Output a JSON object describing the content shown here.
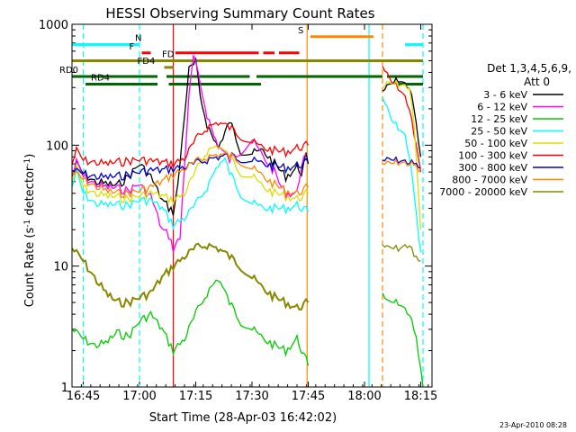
{
  "chart_data": {
    "type": "line",
    "title": "HESSI Observing Summary Count Rates",
    "xlabel": "Start Time (28-Apr-03 16:42:02)",
    "ylabel": "Count Rate (s⁻¹ detector⁻¹)",
    "ylabel_main": "Count Rate (s",
    "ylabel_mid": " detector",
    "ylabel_end": ")",
    "ylabel_sup": "-1",
    "footer": "23-Apr-2010 08:28",
    "legend_title_1": "Det 1,3,4,5,6,9,",
    "legend_title_2": "Att 0",
    "xlim_min": [
      16.7,
      18.3
    ],
    "ylim": [
      1,
      1000
    ],
    "y_scale": "log",
    "x_ticks": [
      {
        "label": "16:45",
        "value": 16.75
      },
      {
        "label": "17:00",
        "value": 17.0
      },
      {
        "label": "17:15",
        "value": 17.25
      },
      {
        "label": "17:30",
        "value": 17.5
      },
      {
        "label": "17:45",
        "value": 17.75
      },
      {
        "label": "18:00",
        "value": 18.0
      },
      {
        "label": "18:15",
        "value": 18.25
      }
    ],
    "y_ticks": [
      {
        "label": "1",
        "value": 1
      },
      {
        "label": "10",
        "value": 10
      },
      {
        "label": "100",
        "value": 100
      },
      {
        "label": "1000",
        "value": 1000
      }
    ],
    "series": [
      {
        "name": "3 - 6 keV",
        "color": "#000000",
        "x": [
          16.7,
          16.72,
          16.75,
          16.8,
          16.85,
          16.9,
          16.95,
          17.0,
          17.05,
          17.1,
          17.15,
          17.17,
          17.2,
          17.22,
          17.25,
          17.27,
          17.3,
          17.33,
          17.35,
          17.37,
          17.4,
          17.45,
          17.5,
          17.55,
          17.6,
          17.65,
          17.7,
          17.72,
          17.74,
          17.75
        ],
        "y": [
          55,
          70,
          58,
          50,
          48,
          46,
          55,
          70,
          55,
          35,
          28,
          45,
          180,
          420,
          480,
          250,
          150,
          110,
          100,
          110,
          160,
          90,
          85,
          90,
          70,
          55,
          65,
          60,
          80,
          70
        ]
      },
      {
        "name": "6 - 12 keV",
        "color": "#ff00ff",
        "x": [
          16.7,
          16.72,
          16.75,
          16.8,
          16.85,
          16.9,
          16.95,
          17.0,
          17.03,
          17.05,
          17.1,
          17.13,
          17.15,
          17.18,
          17.2,
          17.22,
          17.24,
          17.26,
          17.3,
          17.33,
          17.35,
          17.4,
          17.45,
          17.5,
          17.55,
          17.6,
          17.63,
          17.65,
          17.7,
          17.72,
          17.74
        ],
        "y": [
          55,
          72,
          55,
          48,
          45,
          44,
          42,
          48,
          40,
          38,
          20,
          18,
          14,
          17,
          70,
          250,
          550,
          380,
          180,
          120,
          100,
          75,
          90,
          110,
          80,
          60,
          45,
          40,
          40,
          70,
          85
        ]
      },
      {
        "name": "12 - 25 keV",
        "color": "#00cc00",
        "x": [
          16.7,
          16.75,
          16.8,
          16.85,
          16.9,
          16.95,
          17.0,
          17.05,
          17.1,
          17.15,
          17.2,
          17.25,
          17.3,
          17.35,
          17.4,
          17.45,
          17.5,
          17.55,
          17.6,
          17.65,
          17.7,
          17.75
        ],
        "y": [
          3,
          2.5,
          2.2,
          2.3,
          2.8,
          2.6,
          3.5,
          4,
          3,
          2,
          2.5,
          4,
          6,
          8,
          5,
          3.5,
          3,
          2.5,
          2.2,
          2,
          2.5,
          1.5
        ]
      },
      {
        "name": "25 - 50 keV",
        "color": "#00ffff",
        "x": [
          16.7,
          16.72,
          16.75,
          16.8,
          16.85,
          16.9,
          16.95,
          17.0,
          17.05,
          17.1,
          17.15,
          17.2,
          17.25,
          17.3,
          17.35,
          17.38,
          17.4,
          17.45,
          17.5,
          17.55,
          17.6,
          17.65,
          17.7,
          17.75
        ],
        "y": [
          45,
          60,
          40,
          33,
          32,
          32,
          32,
          35,
          35,
          30,
          22,
          25,
          32,
          45,
          70,
          75,
          60,
          40,
          33,
          30,
          30,
          30,
          32,
          28
        ]
      },
      {
        "name": "50 - 100 keV",
        "color": "#dddd00",
        "x": [
          16.7,
          16.72,
          16.75,
          16.8,
          16.85,
          16.9,
          16.95,
          17.0,
          17.05,
          17.1,
          17.15,
          17.2,
          17.25,
          17.3,
          17.35,
          17.4,
          17.45,
          17.5,
          17.55,
          17.6,
          17.65,
          17.7,
          17.75
        ],
        "y": [
          50,
          65,
          45,
          40,
          38,
          37,
          36,
          38,
          40,
          38,
          35,
          40,
          60,
          90,
          100,
          80,
          60,
          55,
          45,
          40,
          38,
          36,
          40
        ]
      },
      {
        "name": "100 - 300 keV",
        "color": "#ff0000",
        "x": [
          16.7,
          16.72,
          16.75,
          16.8,
          16.85,
          16.9,
          16.95,
          17.0,
          17.05,
          17.1,
          17.15,
          17.2,
          17.25,
          17.3,
          17.35,
          17.4,
          17.45,
          17.5,
          17.55,
          17.6,
          17.65,
          17.7,
          17.75
        ],
        "y": [
          70,
          90,
          75,
          72,
          70,
          72,
          74,
          76,
          74,
          72,
          70,
          78,
          110,
          140,
          155,
          140,
          120,
          105,
          95,
          90,
          88,
          95,
          100
        ]
      },
      {
        "name": "300 - 800 keV",
        "color": "#0000cc",
        "x": [
          16.7,
          16.75,
          16.8,
          16.85,
          16.9,
          16.95,
          17.0,
          17.05,
          17.1,
          17.15,
          17.2,
          17.25,
          17.3,
          17.35,
          17.4,
          17.45,
          17.5,
          17.55,
          17.6,
          17.65,
          17.7,
          17.75
        ],
        "y": [
          62,
          58,
          55,
          54,
          55,
          57,
          60,
          62,
          62,
          64,
          66,
          70,
          76,
          80,
          82,
          78,
          74,
          70,
          67,
          65,
          68,
          72
        ]
      },
      {
        "name": "800 - 7000 keV",
        "color": "#ff8800",
        "x": [
          16.7,
          16.75,
          16.8,
          16.85,
          16.9,
          16.95,
          17.0,
          17.05,
          17.1,
          17.15,
          17.2,
          17.25,
          17.3,
          17.35,
          17.4,
          17.45,
          17.5,
          17.55,
          17.6,
          17.65,
          17.7,
          17.75
        ],
        "y": [
          60,
          52,
          46,
          42,
          40,
          40,
          42,
          45,
          50,
          57,
          64,
          72,
          80,
          84,
          82,
          74,
          64,
          55,
          47,
          42,
          40,
          45
        ]
      },
      {
        "name": "7000 - 20000 keV",
        "color": "#888800",
        "x": [
          16.7,
          16.75,
          16.8,
          16.85,
          16.9,
          16.95,
          17.0,
          17.05,
          17.1,
          17.15,
          17.2,
          17.25,
          17.3,
          17.35,
          17.4,
          17.45,
          17.5,
          17.55,
          17.6,
          17.65,
          17.7,
          17.75
        ],
        "y": [
          14,
          11,
          8,
          6,
          5,
          5,
          5.5,
          6,
          8,
          10,
          12,
          14,
          15,
          14,
          12,
          10,
          8,
          6.5,
          5.5,
          5,
          4.5,
          5
        ]
      }
    ],
    "series_b": [
      {
        "color": "#ff0000",
        "x": [
          18.08,
          18.1,
          18.12,
          18.15,
          18.18,
          18.2,
          18.22,
          18.24,
          18.25
        ],
        "y": [
          450,
          380,
          330,
          300,
          250,
          200,
          120,
          80,
          60
        ]
      },
      {
        "color": "#000000",
        "x": [
          18.08,
          18.1,
          18.15,
          18.2,
          18.22,
          18.25
        ],
        "y": [
          280,
          300,
          350,
          300,
          200,
          80
        ]
      },
      {
        "color": "#00ffff",
        "x": [
          18.08,
          18.1,
          18.12,
          18.15,
          18.18,
          18.2,
          18.22,
          18.24,
          18.25
        ],
        "y": [
          250,
          200,
          160,
          140,
          120,
          80,
          40,
          18,
          13
        ]
      },
      {
        "color": "#dddd00",
        "x": [
          18.08,
          18.1,
          18.15,
          18.2,
          18.22,
          18.24,
          18.25
        ],
        "y": [
          300,
          320,
          320,
          300,
          150,
          40,
          20
        ]
      },
      {
        "color": "#0000cc",
        "x": [
          18.08,
          18.12,
          18.15,
          18.2,
          18.22,
          18.25
        ],
        "y": [
          75,
          75,
          75,
          72,
          70,
          65
        ]
      },
      {
        "color": "#ff8800",
        "x": [
          18.08,
          18.12,
          18.15,
          18.2,
          18.22,
          18.25
        ],
        "y": [
          70,
          70,
          72,
          70,
          68,
          60
        ]
      },
      {
        "color": "#888800",
        "x": [
          18.08,
          18.1,
          18.15,
          18.2,
          18.22,
          18.25
        ],
        "y": [
          15,
          14,
          14,
          15,
          12,
          11
        ]
      },
      {
        "color": "#00cc00",
        "x": [
          18.08,
          18.1,
          18.15,
          18.2,
          18.23,
          18.26
        ],
        "y": [
          6,
          5,
          5,
          4,
          2.5,
          1
        ]
      }
    ],
    "flag_bars": [
      {
        "label": "N",
        "color": "#00ffff",
        "segments": [
          [
            16.7,
            17.0
          ],
          [
            18.18,
            18.26
          ]
        ],
        "y": 680
      },
      {
        "label": "F",
        "color": "#ff0000",
        "segments": [
          [
            17.01,
            17.05
          ],
          [
            17.16,
            17.53
          ],
          [
            17.55,
            17.6
          ],
          [
            17.62,
            17.71
          ]
        ],
        "y": 580
      },
      {
        "label": "S",
        "color": "#ff8800",
        "segments": [
          [
            17.76,
            18.04
          ]
        ],
        "y": 790
      },
      {
        "label": "FD",
        "color": "#888800",
        "segments": [
          [
            16.7,
            18.26
          ]
        ],
        "y": 500
      },
      {
        "label": "FD4",
        "color": "#888800",
        "segments": [
          [
            17.11,
            17.15
          ]
        ],
        "y": 440
      },
      {
        "label": "RD0",
        "color": "#006600",
        "segments": [
          [
            16.7,
            17.08
          ],
          [
            17.12,
            17.49
          ],
          [
            17.52,
            18.08
          ],
          [
            18.1,
            18.26
          ]
        ],
        "y": 370
      },
      {
        "label": "RD4",
        "color": "#006600",
        "segments": [
          [
            16.76,
            17.08
          ],
          [
            17.13,
            17.54
          ],
          [
            18.15,
            18.26
          ]
        ],
        "y": 320
      }
    ],
    "vlines": [
      {
        "x": 16.75,
        "color": "#00ffff",
        "style": "dashed"
      },
      {
        "x": 17.0,
        "color": "#00ffff",
        "style": "dashed"
      },
      {
        "x": 17.15,
        "color": "#ff0000",
        "style": "solid"
      },
      {
        "x": 17.745,
        "color": "#ff8800",
        "style": "solid"
      },
      {
        "x": 18.02,
        "color": "#00ffff",
        "style": "solid"
      },
      {
        "x": 18.08,
        "color": "#ff8800",
        "style": "dashed"
      },
      {
        "x": 18.26,
        "color": "#00ffff",
        "style": "dashed"
      }
    ],
    "gap": [
      17.75,
      18.07
    ],
    "legend_position": "right"
  }
}
